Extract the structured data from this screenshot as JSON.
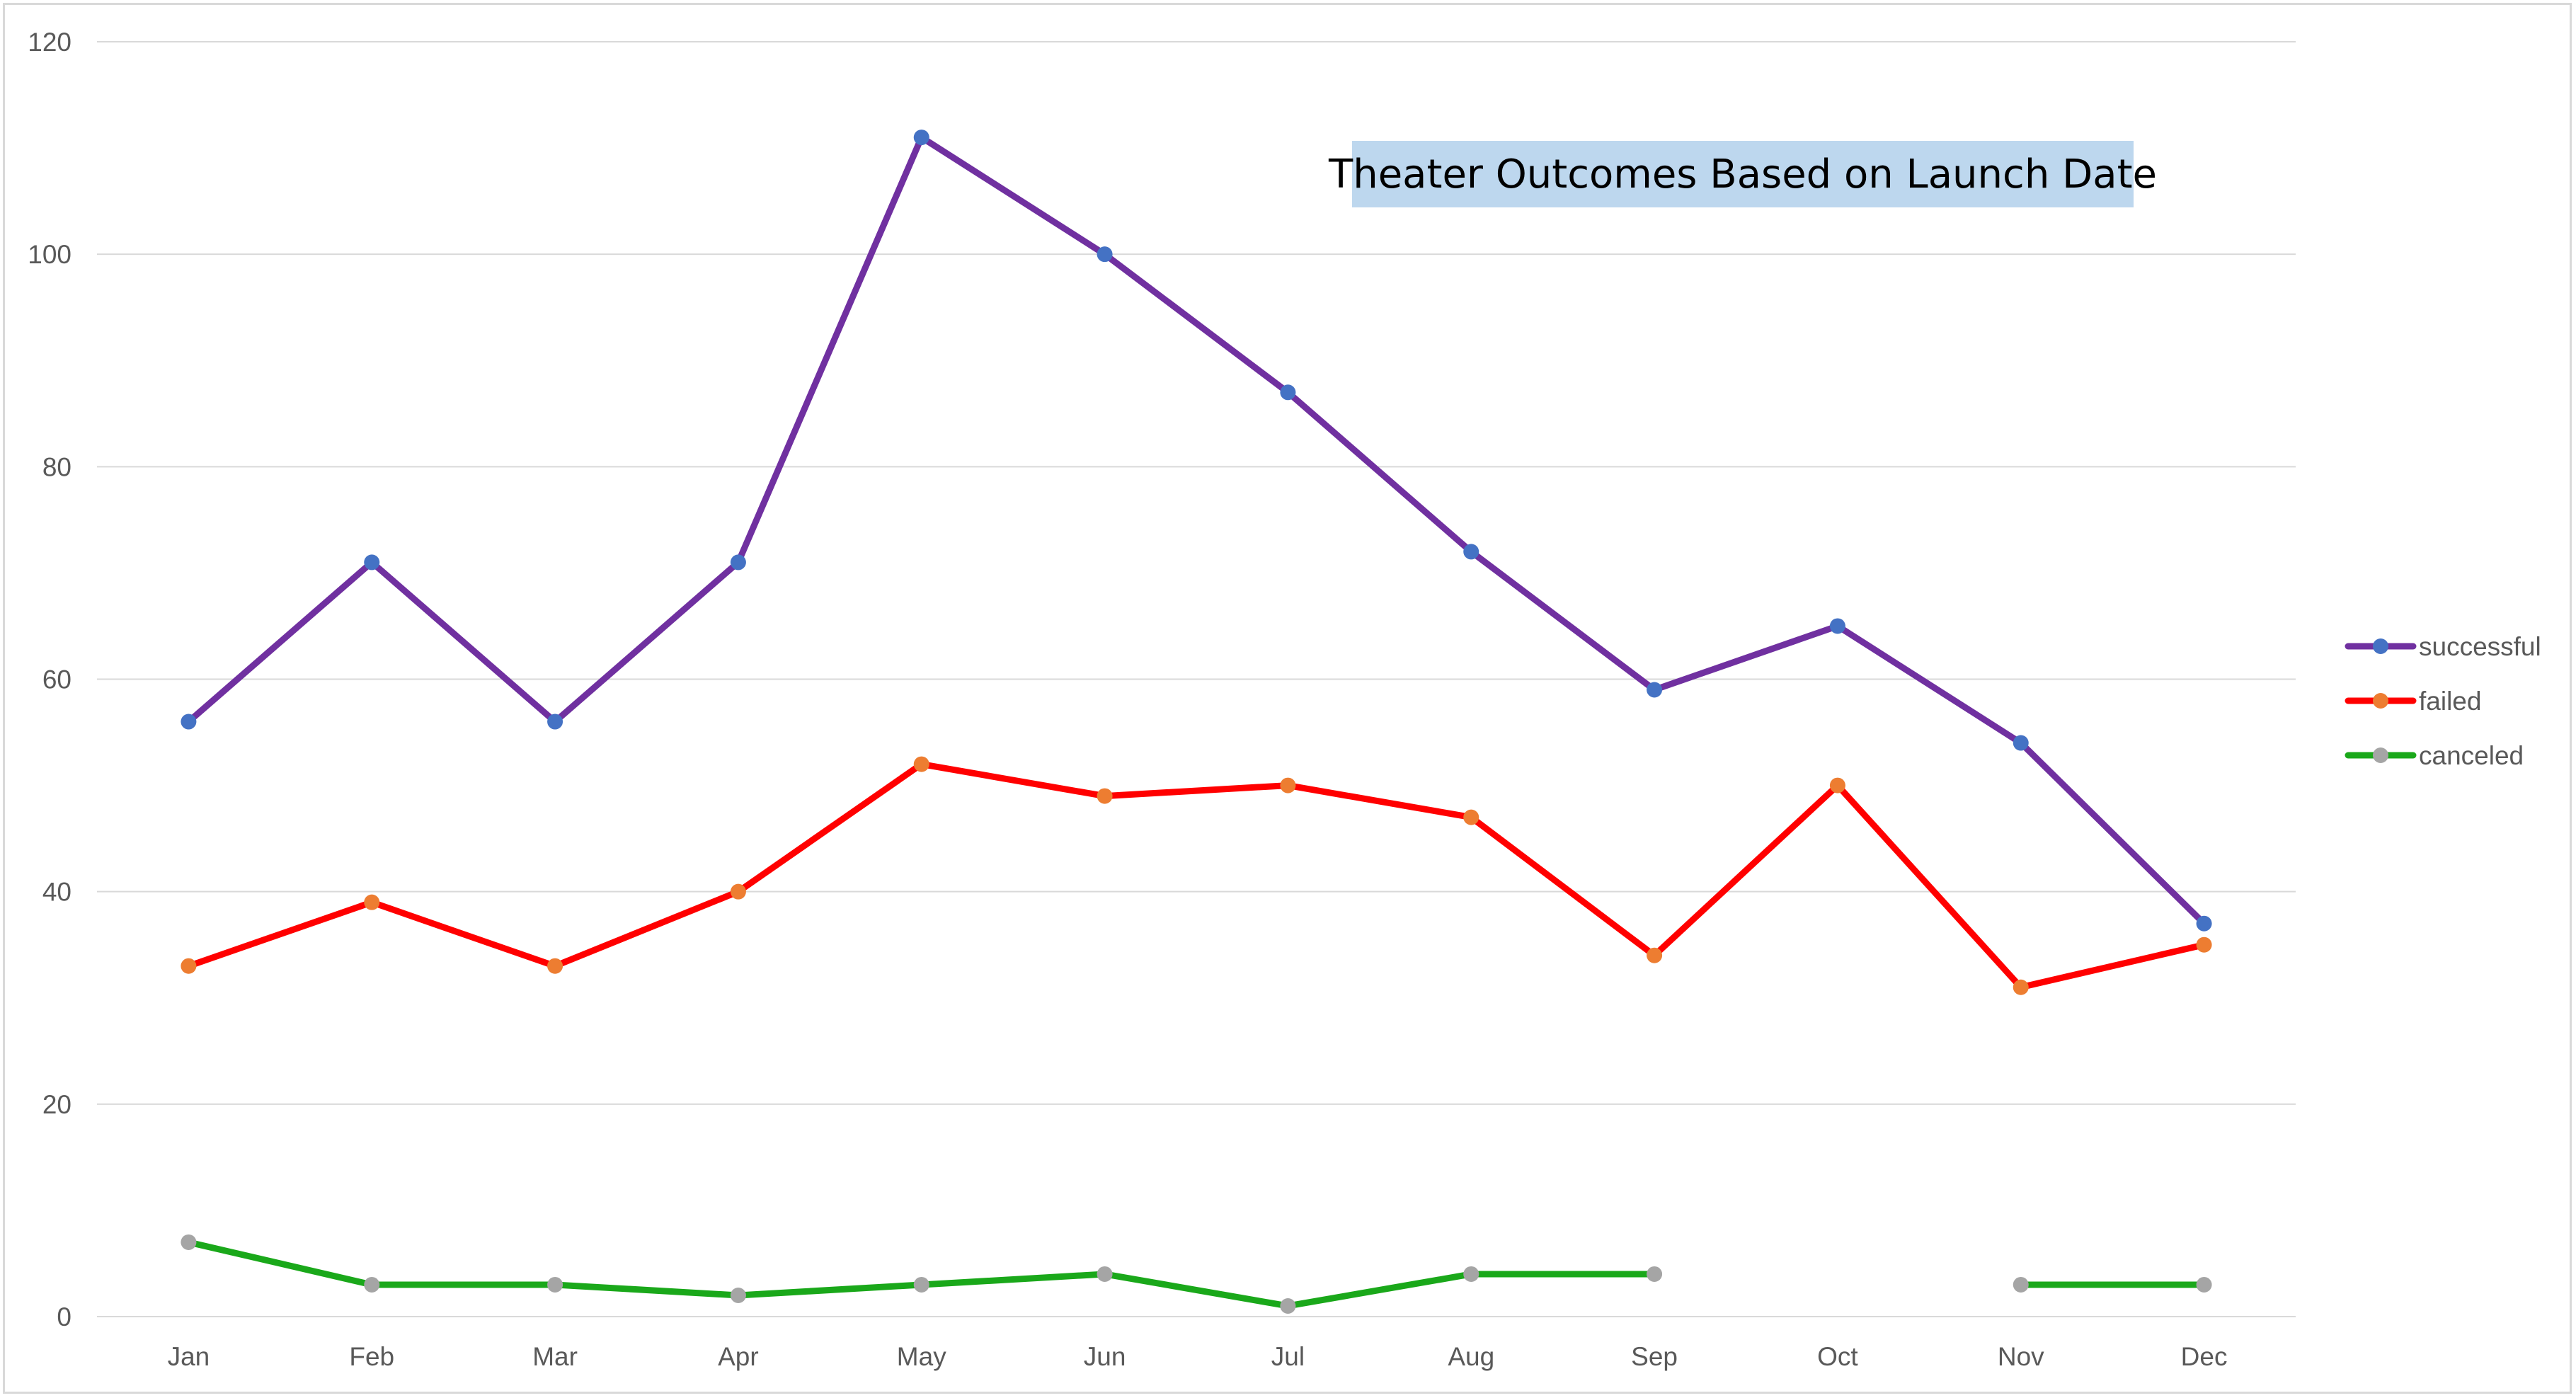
{
  "chart_data": {
    "type": "line",
    "title": "Theater Outcomes Based on Launch Date",
    "xlabel": "",
    "ylabel": "",
    "categories": [
      "Jan",
      "Feb",
      "Mar",
      "Apr",
      "May",
      "Jun",
      "Jul",
      "Aug",
      "Sep",
      "Oct",
      "Nov",
      "Dec"
    ],
    "ylim": [
      0,
      120
    ],
    "yticks": [
      0,
      20,
      40,
      60,
      80,
      100,
      120
    ],
    "grid": true,
    "legend_position": "right",
    "series": [
      {
        "name": "successful",
        "line_color": "#7030a0",
        "marker_color": "#4472c4",
        "values": [
          56,
          71,
          56,
          71,
          111,
          100,
          87,
          72,
          59,
          65,
          54,
          37
        ]
      },
      {
        "name": "failed",
        "line_color": "#ff0000",
        "marker_color": "#ed7d31",
        "values": [
          33,
          39,
          33,
          40,
          52,
          49,
          50,
          47,
          34,
          50,
          31,
          35
        ]
      },
      {
        "name": "canceled",
        "line_color": "#1aa81a",
        "marker_color": "#a5a5a5",
        "values": [
          7,
          3,
          3,
          2,
          3,
          4,
          1,
          4,
          4,
          null,
          3,
          3
        ]
      }
    ]
  },
  "colors": {
    "title_background": "#bdd7ee",
    "gridline": "#d9d9d9",
    "axis_text": "#595959"
  }
}
